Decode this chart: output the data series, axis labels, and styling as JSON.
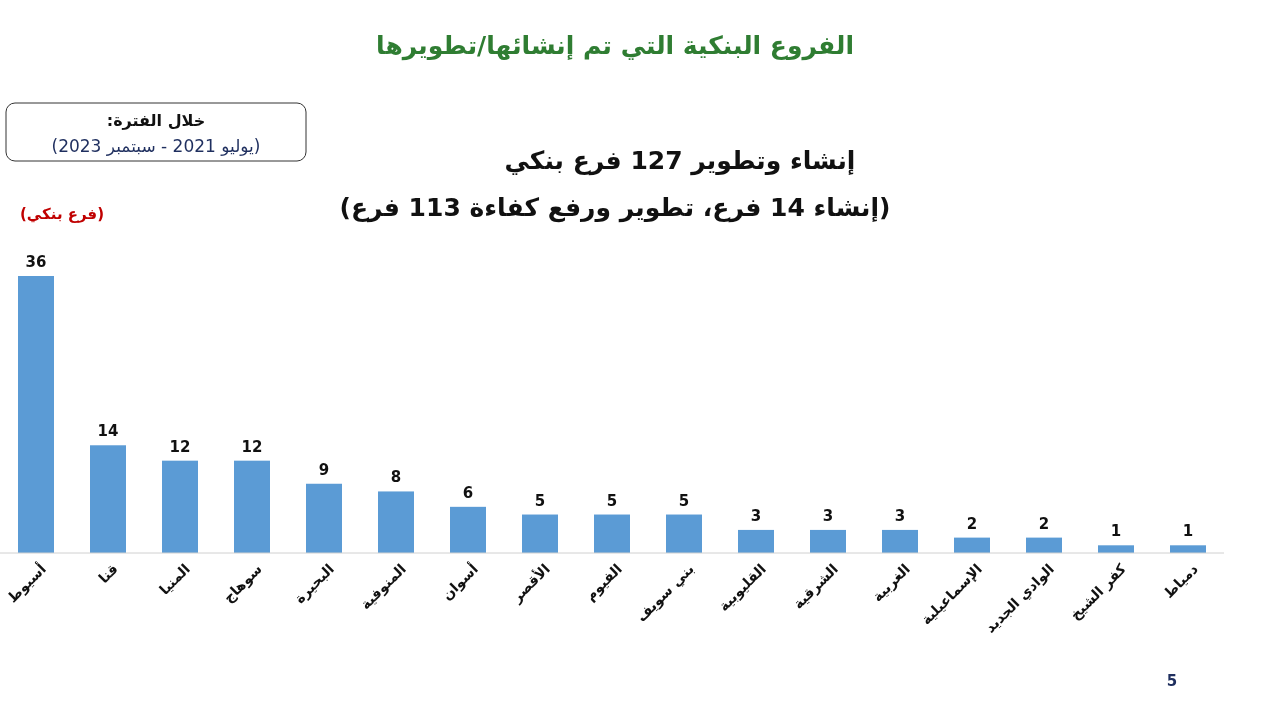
{
  "chart_data": {
    "type": "bar",
    "title": "الفروع البنكية التي تم إنشائها/تطويرها",
    "subtitle": "إنشاء وتطوير 127 فرع بنكي\n(إنشاء 14 فرع، تطوير ورفع كفاءة 113 فرع)",
    "ylabel": "(فرع بنكي)",
    "annotations": [
      "خلال الفترة:",
      "(يوليو 2021 - سبتمبر 2023)",
      "5"
    ],
    "categories": [
      "أسيوط",
      "قنا",
      "المنيا",
      "سوهاج",
      "البحيرة",
      "المنوفية",
      "أسوان",
      "الأقصر",
      "الفيوم",
      "بني سويف",
      "القليوبية",
      "الشرقية",
      "الغربية",
      "الإسماعيلية",
      "الوادي الجديد",
      "كفر الشيخ",
      "دمياط"
    ],
    "values": [
      36,
      14,
      12,
      12,
      9,
      8,
      6,
      5,
      5,
      5,
      3,
      3,
      3,
      2,
      2,
      1,
      1
    ],
    "color": "#5b9bd5",
    "data_labels": true
  }
}
